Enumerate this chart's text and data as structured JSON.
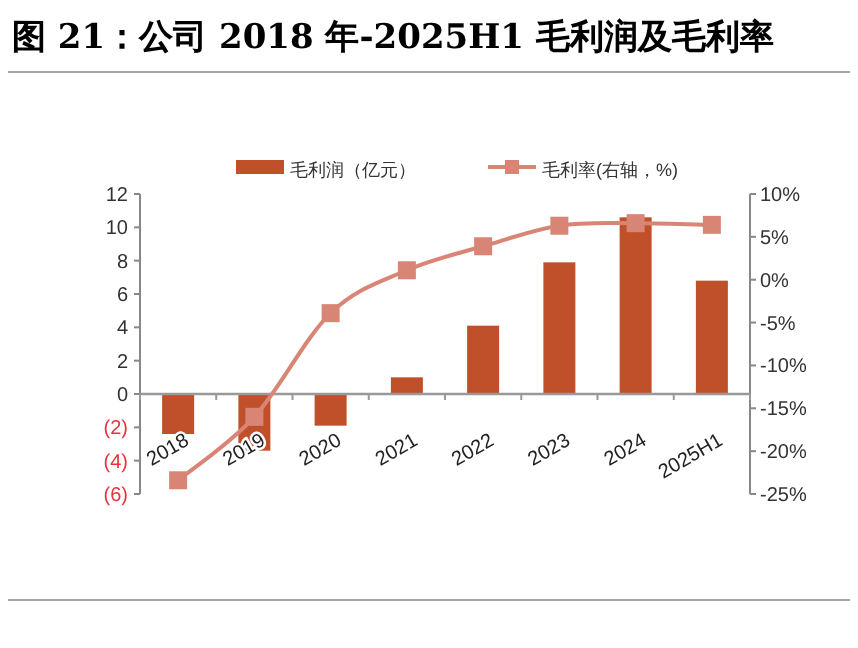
{
  "chart_data": {
    "type": "bar",
    "title": "图 21：公司 2018 年-2025H1 毛利润及毛利率",
    "categories": [
      "2018",
      "2019",
      "2020",
      "2021",
      "2022",
      "2023",
      "2024",
      "2025H1"
    ],
    "series": [
      {
        "name": "毛利润（亿元）",
        "color": "#c0502a",
        "values": [
          -2.4,
          -3.4,
          -1.9,
          1.0,
          4.1,
          7.9,
          10.6,
          6.8
        ]
      },
      {
        "name": "毛利率(右轴，%)",
        "type": "line",
        "axis": "y2",
        "color": "#d98576",
        "marker": "square",
        "values": [
          -23.4,
          -16.0,
          -3.9,
          1.1,
          3.9,
          6.3,
          6.6,
          6.4
        ]
      }
    ],
    "ylim": [
      -6,
      12
    ],
    "yticks": [
      {
        "value": -6,
        "label": "(6)"
      },
      {
        "value": -4,
        "label": "(4)"
      },
      {
        "value": -2,
        "label": "(2)"
      },
      0,
      2,
      4,
      6,
      8,
      10,
      12
    ],
    "y2lim": [
      -25,
      10
    ],
    "y2ticks": [
      {
        "value": -25,
        "label": "-25%"
      },
      {
        "value": -20,
        "label": "-20%"
      },
      {
        "value": -15,
        "label": "-15%"
      },
      {
        "value": -10,
        "label": "-10%"
      },
      {
        "value": -5,
        "label": "-5%"
      },
      {
        "value": 0,
        "label": "0%"
      },
      {
        "value": 5,
        "label": "5%"
      },
      {
        "value": 10,
        "label": "10%"
      }
    ],
    "legend": "top",
    "grid": false
  }
}
